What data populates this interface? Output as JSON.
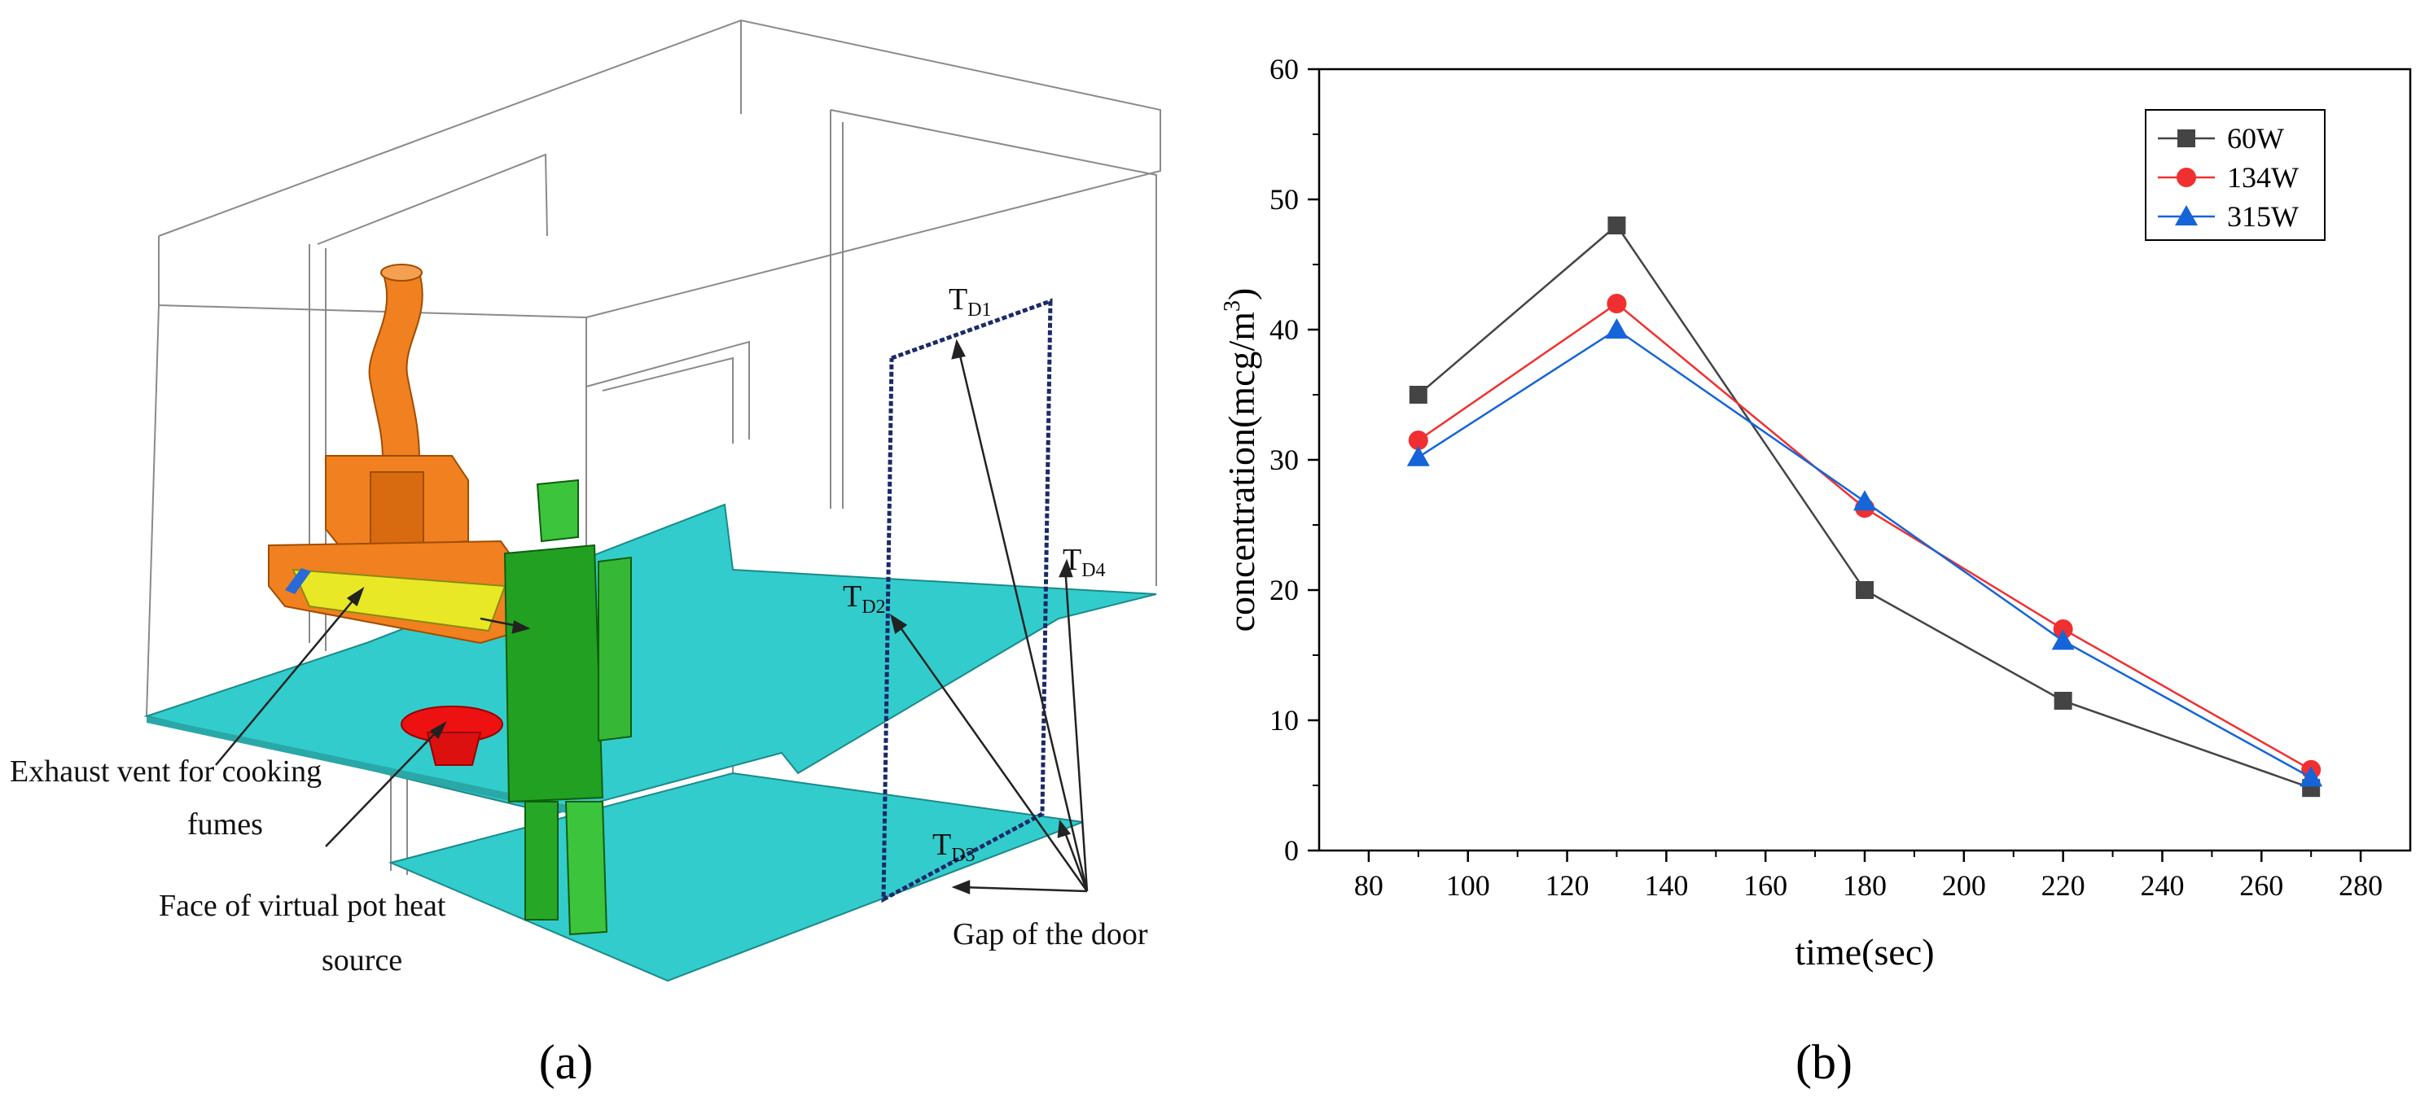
{
  "panel_a": {
    "caption": "(a)",
    "labels": {
      "td1_main": "T",
      "td1_sub": "D1",
      "td2_main": "T",
      "td2_sub": "D2",
      "td3_main": "T",
      "td3_sub": "D3",
      "td4_main": "T",
      "td4_sub": "D4",
      "exhaust_line1": "Exhaust vent for cooking",
      "exhaust_line2": "fumes",
      "pot_line1": "Face of virtual pot heat",
      "pot_line2": "source",
      "gap": "Gap of the door"
    },
    "colors": {
      "wireframe": "#8a8a8a",
      "floor": "#33cccc",
      "hood": "#f08020",
      "vent": "#e8e826",
      "person": "#22a022",
      "pot": "#ee1111",
      "door": "#1a2a6a"
    }
  },
  "panel_b": {
    "caption": "(b)"
  },
  "chart_data": {
    "type": "line",
    "xlabel": "time(sec)",
    "ylabel_main": "concentration(mcg/m",
    "ylabel_sup": "3",
    "ylabel_close": ")",
    "xlim": [
      70,
      290
    ],
    "ylim": [
      0,
      60
    ],
    "xticks": [
      80,
      100,
      120,
      140,
      160,
      180,
      200,
      220,
      240,
      260,
      280
    ],
    "yticks": [
      0,
      10,
      20,
      30,
      40,
      50,
      60
    ],
    "legend_position": "top-right",
    "x": [
      90,
      130,
      180,
      220,
      270
    ],
    "series": [
      {
        "name": "60W",
        "color": "#444444",
        "marker": "square",
        "values": [
          35,
          48,
          20,
          11.5,
          4.8
        ]
      },
      {
        "name": "134W",
        "color": "#f03030",
        "marker": "circle",
        "values": [
          31.5,
          42,
          26.3,
          17,
          6.2
        ]
      },
      {
        "name": "315W",
        "color": "#1565d8",
        "marker": "triangle",
        "values": [
          30.2,
          40,
          26.8,
          16.1,
          5.6
        ]
      }
    ]
  }
}
